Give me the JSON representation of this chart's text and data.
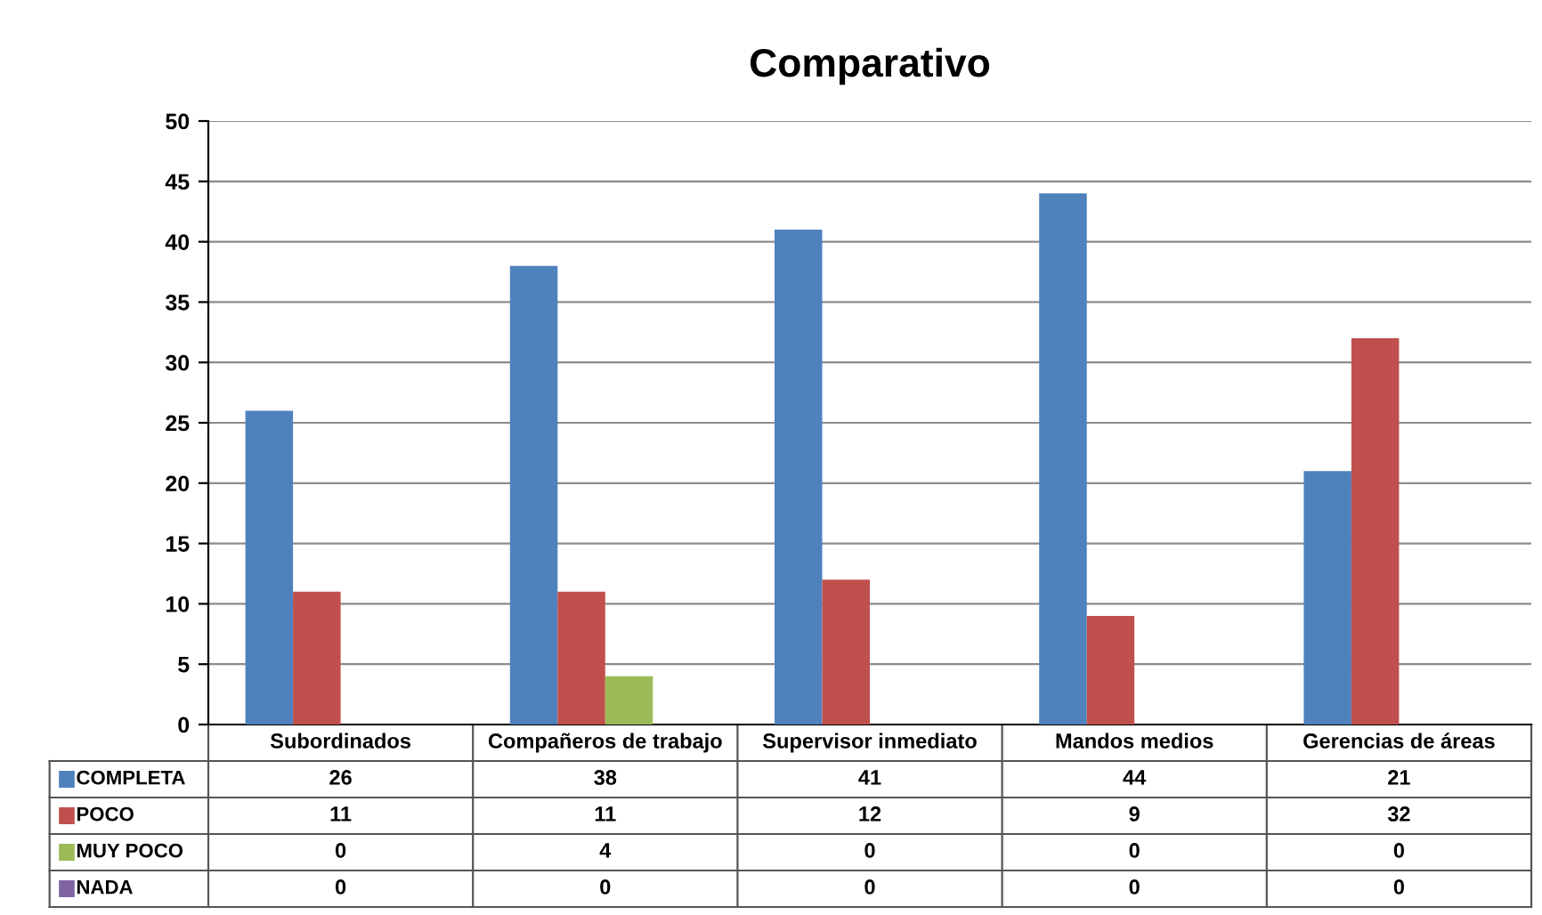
{
  "chart_data": {
    "type": "bar",
    "title": "Comparativo",
    "categories": [
      "Subordinados",
      "Compañeros de trabajo",
      "Supervisor inmediato",
      "Mandos medios",
      "Gerencias de áreas"
    ],
    "series": [
      {
        "name": "COMPLETA",
        "color": "#4f81bd",
        "values": [
          26,
          38,
          41,
          44,
          21
        ]
      },
      {
        "name": "POCO",
        "color": "#c0504d",
        "values": [
          11,
          11,
          12,
          9,
          32
        ]
      },
      {
        "name": "MUY POCO",
        "color": "#9bbb59",
        "values": [
          0,
          4,
          0,
          0,
          0
        ]
      },
      {
        "name": "NADA",
        "color": "#8064a2",
        "values": [
          0,
          0,
          0,
          0,
          0
        ]
      }
    ],
    "ylim": [
      0,
      50
    ],
    "yticks": [
      0,
      5,
      10,
      15,
      20,
      25,
      30,
      35,
      40,
      45,
      50
    ],
    "grid": "y",
    "legend": "bottom left",
    "data_labels": true
  }
}
